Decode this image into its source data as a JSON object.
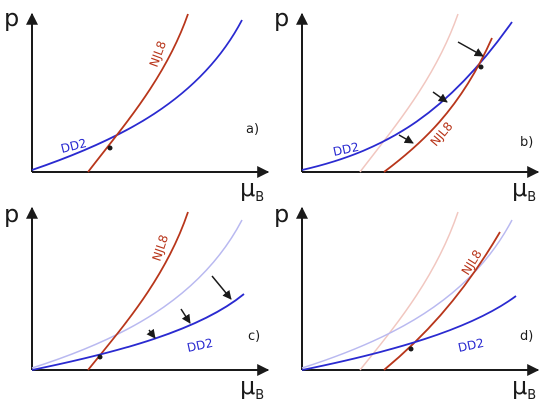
{
  "panels": [
    {
      "tag": "a)",
      "y_axis_label": "p",
      "x_axis_main": "μ",
      "x_axis_sub": "B",
      "curves": [
        {
          "label": "DD2",
          "color": "#2a2ad0"
        },
        {
          "label": "NJL8",
          "color": "#b8361b"
        }
      ]
    },
    {
      "tag": "b)",
      "y_axis_label": "p",
      "x_axis_main": "μ",
      "x_axis_sub": "B",
      "curves": [
        {
          "label": "DD2",
          "color": "#2a2ad0"
        },
        {
          "label": "NJL8",
          "color": "#b8361b"
        }
      ]
    },
    {
      "tag": "c)",
      "y_axis_label": "p",
      "x_axis_main": "μ",
      "x_axis_sub": "B",
      "curves": [
        {
          "label": "DD2",
          "color": "#2a2ad0"
        },
        {
          "label": "NJL8",
          "color": "#b8361b"
        }
      ]
    },
    {
      "tag": "d)",
      "y_axis_label": "p",
      "x_axis_main": "μ",
      "x_axis_sub": "B",
      "curves": [
        {
          "label": "DD2",
          "color": "#2a2ad0"
        },
        {
          "label": "NJL8",
          "color": "#b8361b"
        }
      ]
    }
  ],
  "colors": {
    "dd2": "#2a2ad0",
    "njl8": "#b8361b",
    "dd2_faded": "#b9b9f0",
    "njl8_faded": "#f1c7c0",
    "axis": "#1a1a1a"
  }
}
